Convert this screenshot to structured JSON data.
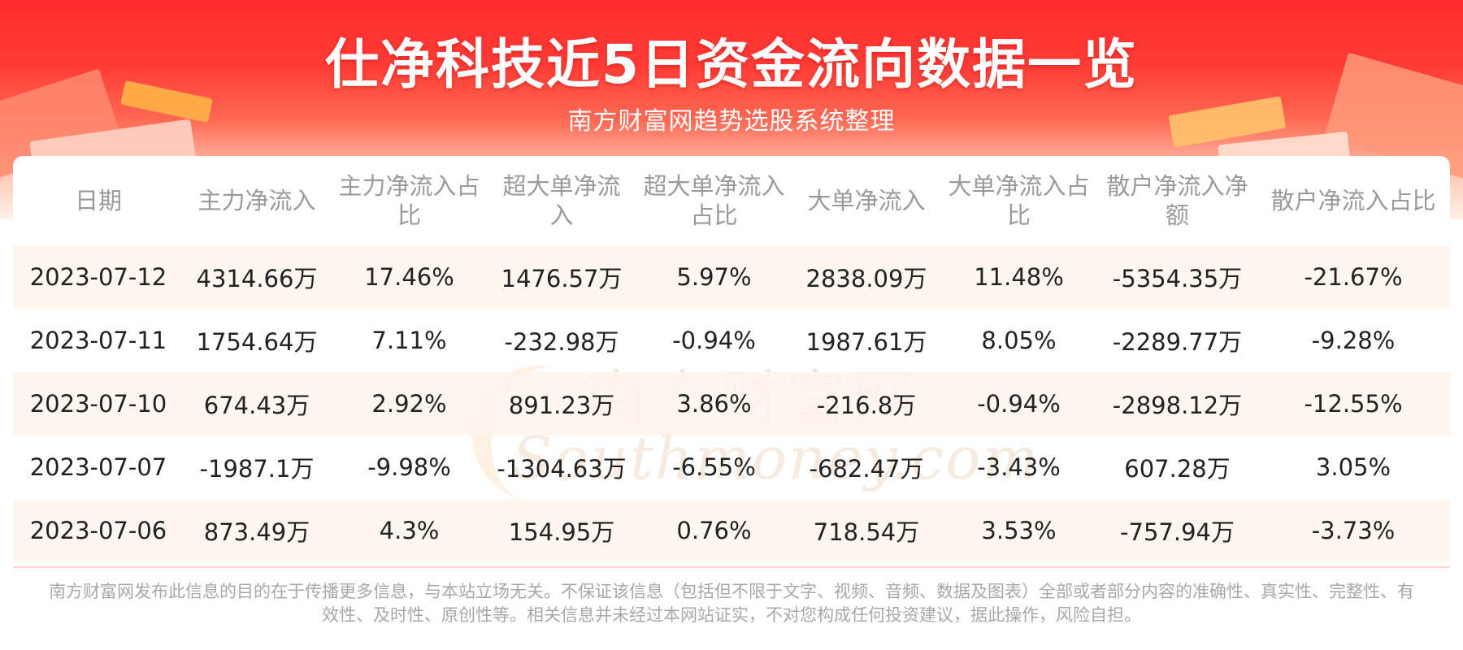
{
  "header": {
    "title": "仕净科技近5日资金流向数据一览",
    "subtitle": "南方财富网趋势选股系统整理"
  },
  "watermark": {
    "cn": "南方财富网",
    "en": "Southmoney.com"
  },
  "table": {
    "columns": [
      "日期",
      "主力净流入",
      "主力净流入占比",
      "超大单净流入",
      "超大单净流入占比",
      "大单净流入",
      "大单净流入占比",
      "散户净流入净额",
      "散户净流入占比"
    ],
    "rows": [
      [
        "2023-07-12",
        "4314.66万",
        "17.46%",
        "1476.57万",
        "5.97%",
        "2838.09万",
        "11.48%",
        "-5354.35万",
        "-21.67%"
      ],
      [
        "2023-07-11",
        "1754.64万",
        "7.11%",
        "-232.98万",
        "-0.94%",
        "1987.61万",
        "8.05%",
        "-2289.77万",
        "-9.28%"
      ],
      [
        "2023-07-10",
        "674.43万",
        "2.92%",
        "891.23万",
        "3.86%",
        "-216.8万",
        "-0.94%",
        "-2898.12万",
        "-12.55%"
      ],
      [
        "2023-07-07",
        "-1987.1万",
        "-9.98%",
        "-1304.63万",
        "-6.55%",
        "-682.47万",
        "-3.43%",
        "607.28万",
        "3.05%"
      ],
      [
        "2023-07-06",
        "873.49万",
        "4.3%",
        "154.95万",
        "0.76%",
        "718.54万",
        "3.53%",
        "-757.94万",
        "-3.73%"
      ]
    ]
  },
  "footer": {
    "disclaimer": "南方财富网发布此信息的目的在于传播更多信息，与本站立场无关。不保证该信息（包括但不限于文字、视频、音频、数据及图表）全部或者部分内容的准确性、真实性、完整性、有效性、及时性、原创性等。相关信息并未经过本网站证实，不对您构成任何投资建议，据此操作，风险自担。"
  },
  "colors": {
    "banner_red": "#ff2d2d",
    "row_highlight": "#fff4ec",
    "header_text": "#9a9a9a",
    "cell_text": "#222222"
  }
}
